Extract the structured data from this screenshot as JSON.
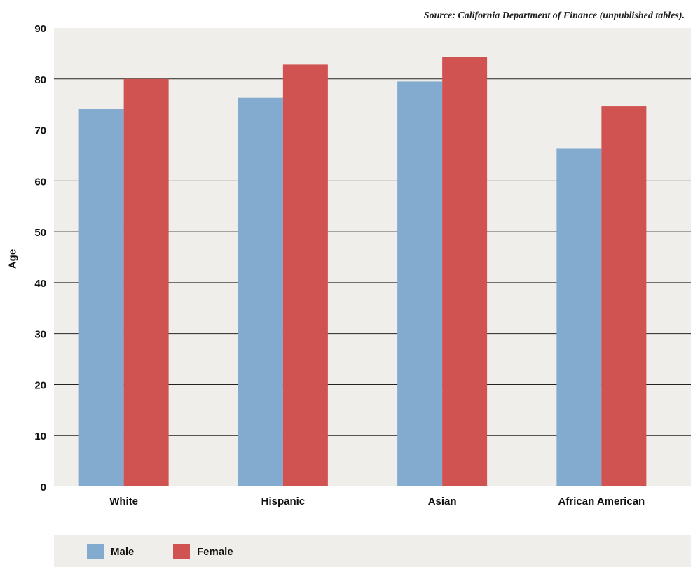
{
  "source_note": "Source: California Department of Finance (unpublished tables).",
  "chart_data": {
    "type": "bar",
    "categories": [
      "White",
      "Hispanic",
      "Asian",
      "African American"
    ],
    "series": [
      {
        "name": "Male",
        "values": [
          74.1,
          76.3,
          79.5,
          66.3
        ],
        "color": "#82abcf"
      },
      {
        "name": "Female",
        "values": [
          80.0,
          82.8,
          84.3,
          74.6
        ],
        "color": "#d05351"
      }
    ],
    "ylabel": "Age",
    "ylim": [
      0,
      90
    ],
    "yticks": [
      0,
      10,
      20,
      30,
      40,
      50,
      60,
      70,
      80,
      90
    ],
    "grid": true,
    "legend_position": "bottom",
    "background_color": "#f0eeea",
    "gridline_color": "#222222"
  }
}
